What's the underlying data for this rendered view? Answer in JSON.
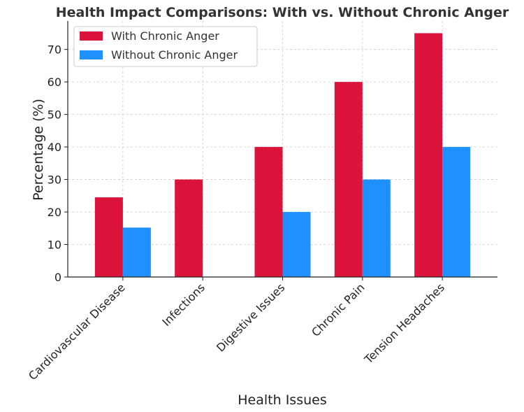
{
  "chart_data": {
    "type": "bar",
    "title": "Health Impact Comparisons: With vs. Without Chronic Anger",
    "xlabel": "Health Issues",
    "ylabel": "Percentage (%)",
    "categories": [
      "Cardiovascular Disease",
      "Infections",
      "Digestive Issues",
      "Chronic Pain",
      "Tension Headaches"
    ],
    "series": [
      {
        "name": "With Chronic Anger",
        "values": [
          24.5,
          30,
          40,
          60,
          75
        ],
        "color": "#dc143c"
      },
      {
        "name": "Without Chronic Anger",
        "values": [
          15.2,
          0,
          20,
          30,
          40
        ],
        "color": "#1e90ff"
      }
    ],
    "ylim": [
      0,
      78.75
    ],
    "yticks": [
      0,
      10,
      20,
      30,
      40,
      50,
      60,
      70
    ],
    "grid": true,
    "legend_position": "top-left"
  }
}
